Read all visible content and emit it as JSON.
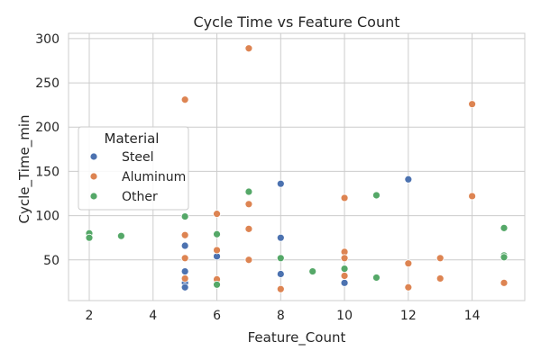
{
  "chart_data": {
    "type": "scatter",
    "title": "Cycle Time vs Feature Count",
    "xlabel": "Feature_Count",
    "ylabel": "Cycle_Time_min",
    "xlim": [
      1.35,
      15.65
    ],
    "ylim": [
      4,
      306
    ],
    "xticks": [
      2,
      4,
      6,
      8,
      10,
      12,
      14
    ],
    "yticks": [
      50,
      100,
      150,
      200,
      250,
      300
    ],
    "grid": true,
    "legend": {
      "title": "Material",
      "placement": "center-left"
    },
    "series": [
      {
        "name": "Steel",
        "color": "#4c72b0",
        "points": [
          [
            5,
            66
          ],
          [
            5,
            37
          ],
          [
            5,
            24
          ],
          [
            5,
            19
          ],
          [
            6,
            54
          ],
          [
            8,
            136
          ],
          [
            8,
            75
          ],
          [
            8,
            34
          ],
          [
            10,
            24
          ],
          [
            12,
            141
          ]
        ]
      },
      {
        "name": "Aluminum",
        "color": "#dd8452",
        "points": [
          [
            5,
            231
          ],
          [
            5,
            78
          ],
          [
            5,
            52
          ],
          [
            5,
            29
          ],
          [
            6,
            102
          ],
          [
            6,
            61
          ],
          [
            6,
            28
          ],
          [
            7,
            289
          ],
          [
            7,
            113
          ],
          [
            7,
            85
          ],
          [
            7,
            50
          ],
          [
            8,
            17
          ],
          [
            10,
            120
          ],
          [
            10,
            59
          ],
          [
            10,
            52
          ],
          [
            10,
            32
          ],
          [
            12,
            46
          ],
          [
            12,
            19
          ],
          [
            13,
            52
          ],
          [
            13,
            29
          ],
          [
            14,
            226
          ],
          [
            14,
            122
          ],
          [
            15,
            24
          ]
        ]
      },
      {
        "name": "Other",
        "color": "#55a868",
        "points": [
          [
            2,
            80
          ],
          [
            2,
            75
          ],
          [
            3,
            77
          ],
          [
            5,
            99
          ],
          [
            6,
            79
          ],
          [
            6,
            22
          ],
          [
            7,
            127
          ],
          [
            8,
            52
          ],
          [
            9,
            37
          ],
          [
            10,
            40
          ],
          [
            11,
            123
          ],
          [
            11,
            30
          ],
          [
            15,
            86
          ],
          [
            15,
            55
          ],
          [
            15,
            53
          ]
        ]
      }
    ]
  }
}
